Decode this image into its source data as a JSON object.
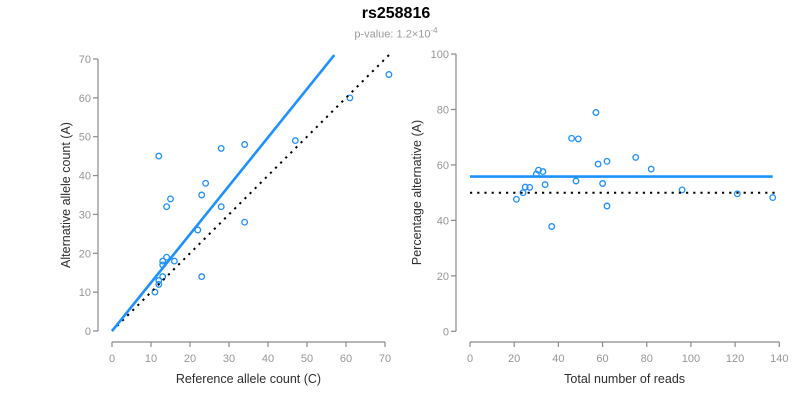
{
  "header": {
    "title": "rs258816",
    "pvalue": {
      "label": "p-value:",
      "mantissa": "1.2",
      "times": "×10",
      "exponent": "-4"
    }
  },
  "colors": {
    "accent_blue": "#1E90FF",
    "line_black": "#000000",
    "axis_gray": "#8a8a8a",
    "tick_label_gray": "#969696",
    "axis_title_color": "#2e2e2e",
    "subtitle_gray": "#9b9b9b",
    "background": "#ffffff"
  },
  "chart_data": [
    {
      "type": "scatter",
      "name": "allele-counts-scatter",
      "xlabel": "Reference allele count (C)",
      "ylabel": "Alternative allele count (A)",
      "xlim": [
        0,
        70
      ],
      "ylim": [
        0,
        70
      ],
      "xticks": [
        0,
        10,
        20,
        30,
        40,
        50,
        60,
        70
      ],
      "yticks": [
        0,
        10,
        20,
        30,
        40,
        50,
        60,
        70
      ],
      "grid": false,
      "legend": "none",
      "points": [
        [
          11,
          10
        ],
        [
          12,
          12
        ],
        [
          12,
          13
        ],
        [
          13,
          14
        ],
        [
          13,
          17
        ],
        [
          13,
          18
        ],
        [
          14,
          19
        ],
        [
          16,
          18
        ],
        [
          12,
          45
        ],
        [
          14,
          32
        ],
        [
          15,
          34
        ],
        [
          22,
          26
        ],
        [
          23,
          14
        ],
        [
          23,
          35
        ],
        [
          24,
          38
        ],
        [
          28,
          32
        ],
        [
          28,
          47
        ],
        [
          34,
          28
        ],
        [
          34,
          48
        ],
        [
          47,
          49
        ],
        [
          61,
          60
        ],
        [
          71,
          66
        ]
      ],
      "lines": [
        {
          "name": "identity-line",
          "x1": 0,
          "y1": 0,
          "x2": 71.5,
          "y2": 71.5,
          "style": "dotted",
          "color": "#000000"
        },
        {
          "name": "fit-line",
          "x1": 0,
          "y1": 0,
          "x2": 57,
          "y2": 71,
          "style": "solid",
          "color": "#1E90FF"
        }
      ]
    },
    {
      "type": "scatter",
      "name": "percentage-vs-reads-scatter",
      "xlabel": "Total number of reads",
      "ylabel": "Percentage alternative (A)",
      "xlim": [
        0,
        140
      ],
      "ylim": [
        0,
        100
      ],
      "xticks": [
        0,
        20,
        40,
        60,
        80,
        100,
        120,
        140
      ],
      "yticks": [
        0,
        20,
        40,
        60,
        80,
        100
      ],
      "grid": false,
      "legend": "none",
      "points": [
        [
          21,
          47.6
        ],
        [
          24,
          50
        ],
        [
          25,
          52
        ],
        [
          27,
          51.9
        ],
        [
          30,
          56.7
        ],
        [
          31,
          58.1
        ],
        [
          33,
          57.6
        ],
        [
          34,
          52.9
        ],
        [
          57,
          78.9
        ],
        [
          46,
          69.6
        ],
        [
          49,
          69.4
        ],
        [
          48,
          54.2
        ],
        [
          37,
          37.8
        ],
        [
          58,
          60.3
        ],
        [
          62,
          61.3
        ],
        [
          60,
          53.3
        ],
        [
          75,
          62.7
        ],
        [
          62,
          45.2
        ],
        [
          82,
          58.5
        ],
        [
          96,
          51
        ],
        [
          121,
          49.6
        ],
        [
          137,
          48.2
        ]
      ],
      "lines": [
        {
          "name": "fifty-percent-reference-line",
          "x1": 0,
          "y1": 50,
          "x2": 140,
          "y2": 50,
          "style": "dotted",
          "color": "#000000"
        },
        {
          "name": "mean-percentage-line",
          "x1": 0,
          "y1": 55.8,
          "x2": 137,
          "y2": 55.8,
          "style": "solid",
          "color": "#1E90FF"
        }
      ]
    }
  ]
}
